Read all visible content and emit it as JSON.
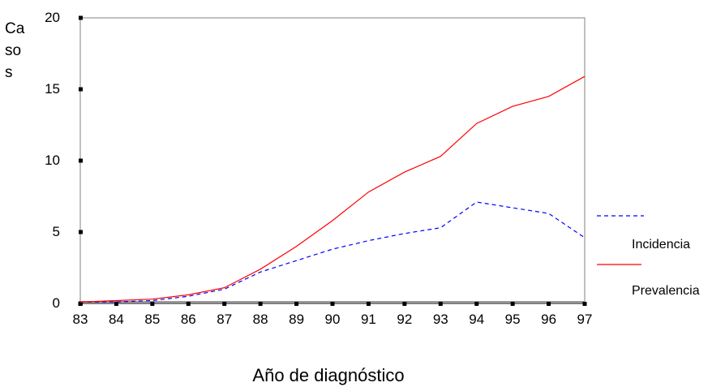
{
  "chart_data": {
    "type": "line",
    "x": [
      "83",
      "84",
      "85",
      "86",
      "87",
      "88",
      "89",
      "90",
      "91",
      "92",
      "93",
      "94",
      "95",
      "96",
      "97"
    ],
    "series": [
      {
        "name": "Incidencia",
        "color": "#0000ff",
        "dash": "dashed",
        "values": [
          0.1,
          0.1,
          0.2,
          0.5,
          1.0,
          2.2,
          3.0,
          3.8,
          4.4,
          4.9,
          5.3,
          7.1,
          6.7,
          6.3,
          4.6
        ]
      },
      {
        "name": "Prevalencia",
        "color": "#ff0000",
        "dash": "solid",
        "values": [
          0.1,
          0.2,
          0.3,
          0.6,
          1.1,
          2.4,
          4.0,
          5.8,
          7.8,
          9.2,
          10.3,
          12.6,
          13.8,
          14.5,
          15.9
        ]
      }
    ],
    "yticks": [
      "0",
      "5",
      "10",
      "15",
      "20"
    ],
    "ylim": [
      0,
      20
    ],
    "ylabel_lines": [
      "Ca",
      "so",
      "s"
    ],
    "xlabel": "Año de diagnóstico",
    "legend_position": "right"
  }
}
